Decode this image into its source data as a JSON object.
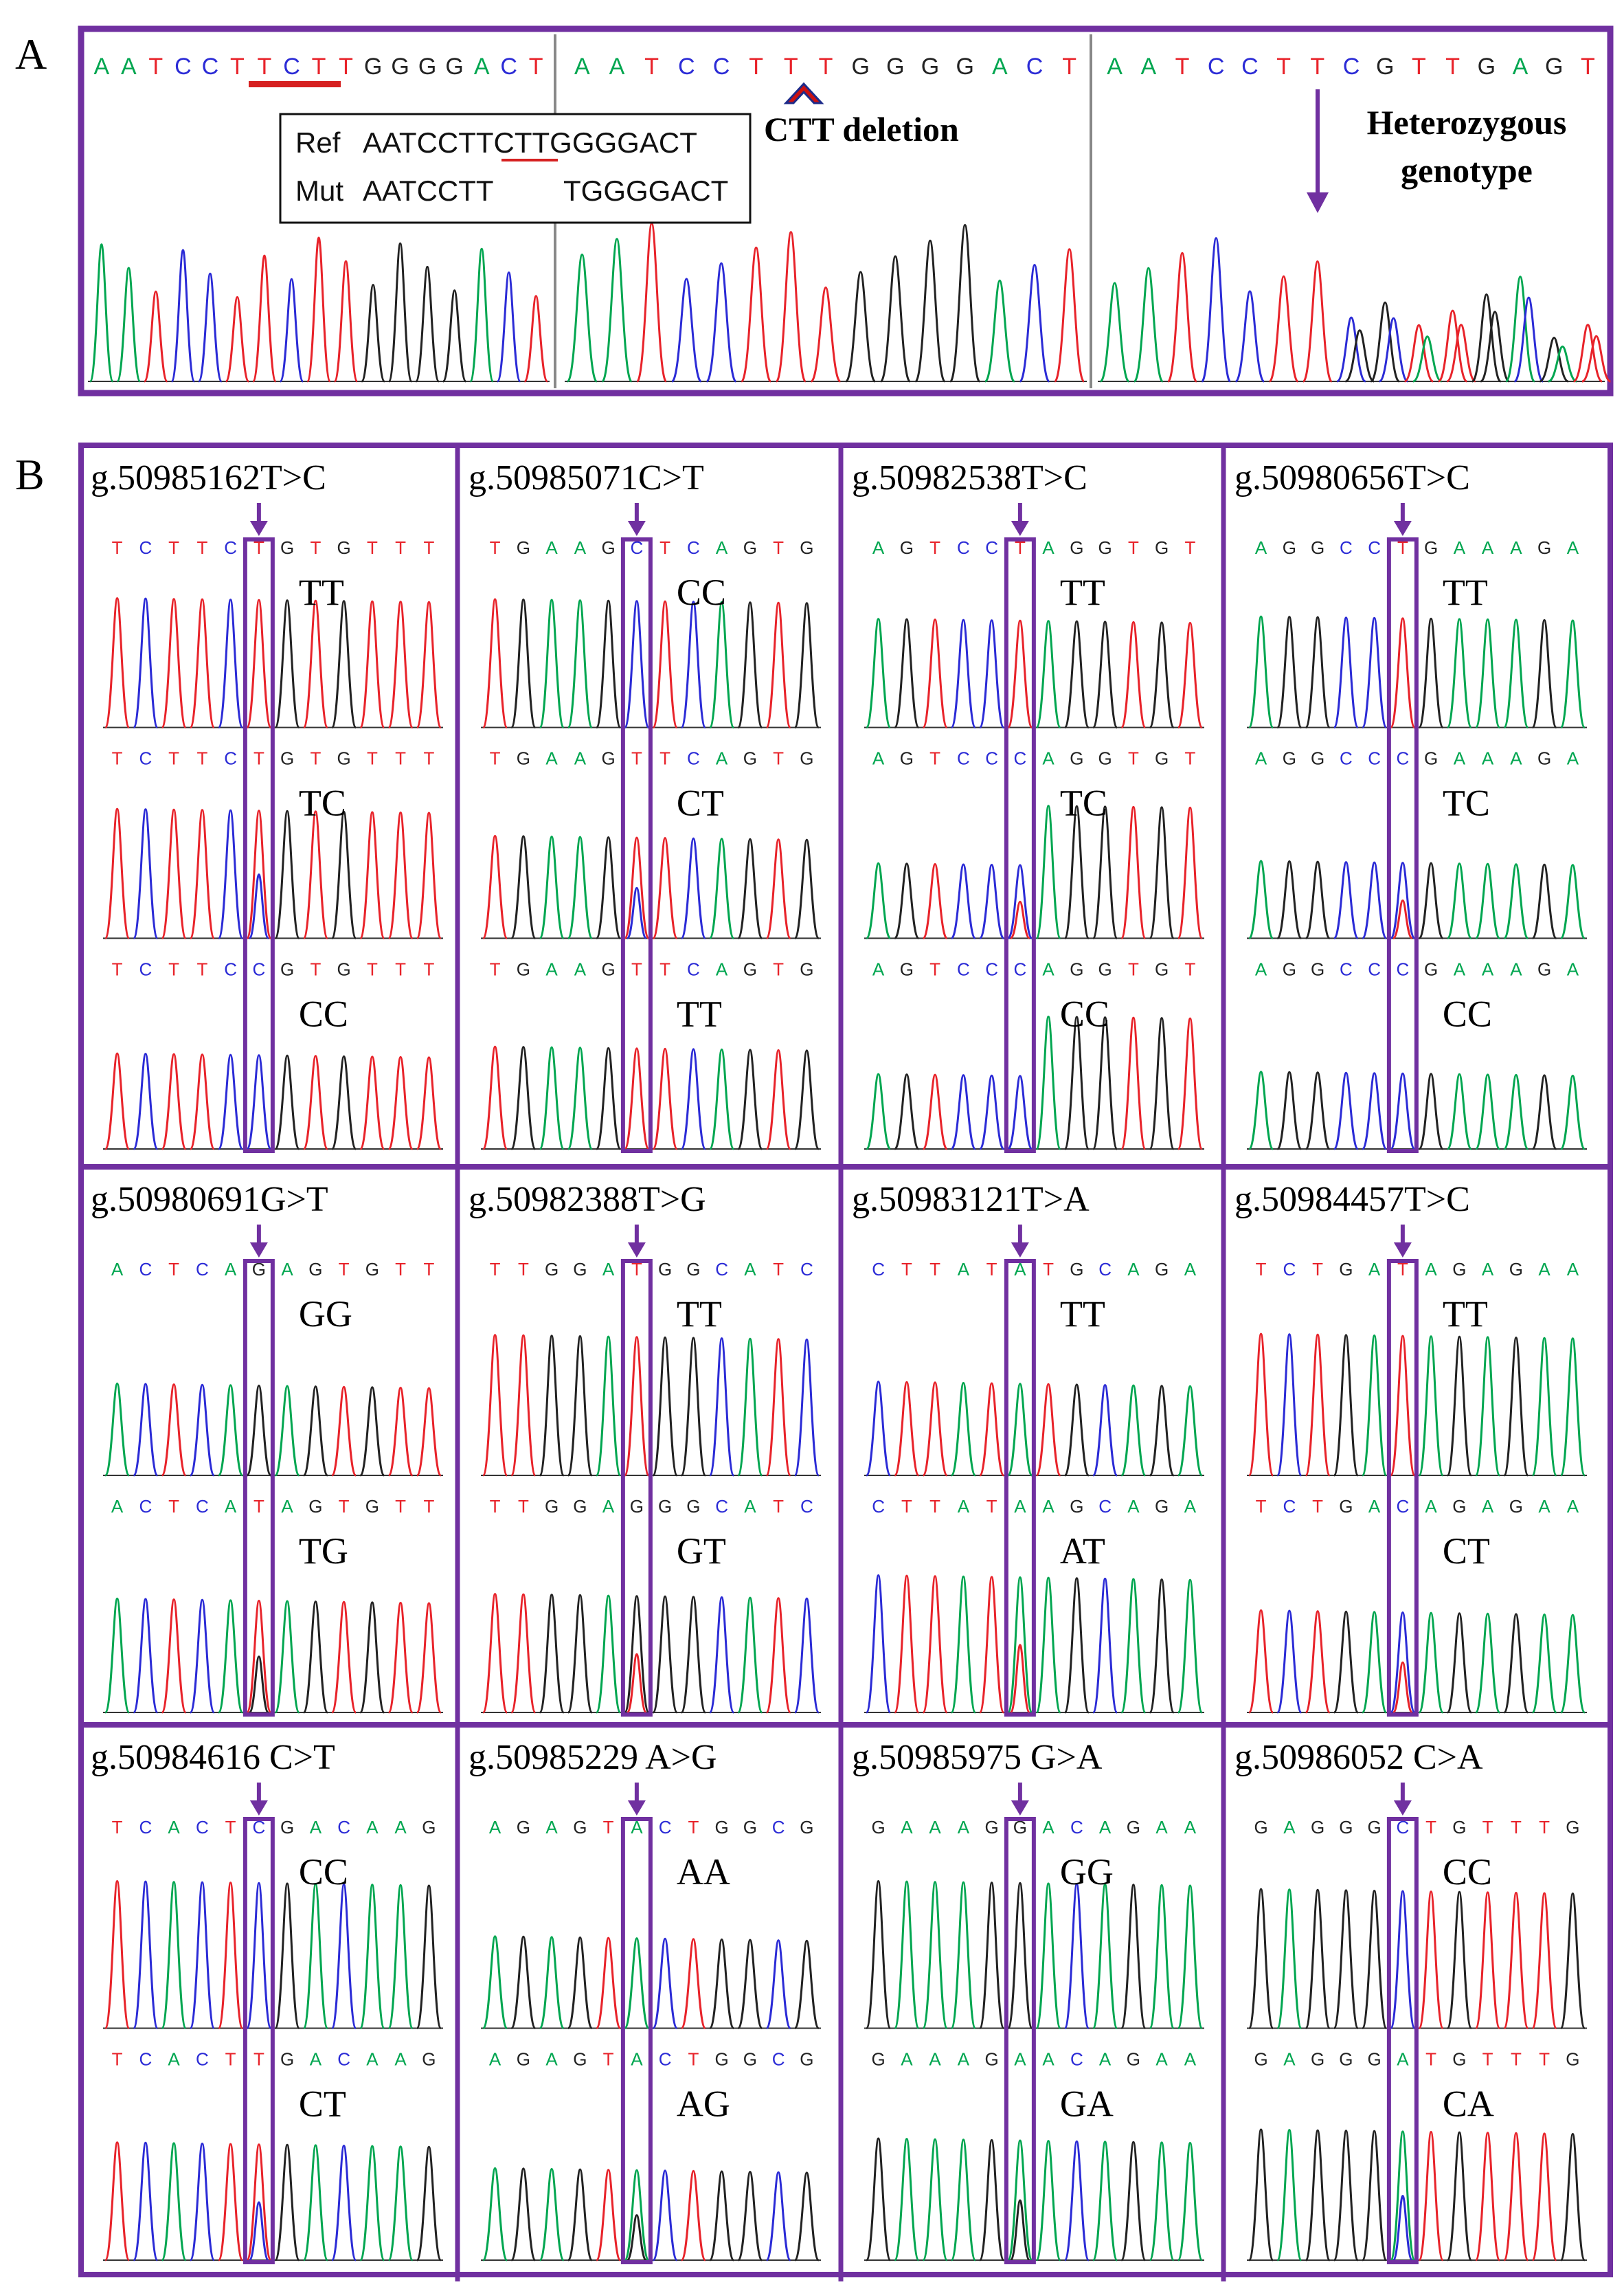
{
  "colors": {
    "frame": "#7030a0",
    "A": "#00a650",
    "C": "#2b2bd6",
    "G": "#222222",
    "T": "#e8232a",
    "ref_mark": "#d62020",
    "del_mark": "#cc1111"
  },
  "panel_a": {
    "label": "A",
    "panel1": {
      "seq": "AATCCTTCTTGGGGACT",
      "ref_label": "Ref",
      "ref_seq": "AATCCTTCTTGGGGACT",
      "mut_label": "Mut",
      "mut_seq_left": "AATCCTT",
      "mut_seq_right": "TGGGGACT"
    },
    "panel2": {
      "seq": "AATCCTTTGGGGACT",
      "annotation": "CTT deletion"
    },
    "panel3": {
      "seq": "AATCCTTCGTTGAGT",
      "annotation_line1": "Heterozygous",
      "annotation_line2": "genotype"
    }
  },
  "panel_b": {
    "label": "B",
    "variants": [
      {
        "name": "g.50985162T>C",
        "traces": [
          {
            "seq": "TCTTCTGTGTTT",
            "genotype": "TT"
          },
          {
            "seq": "TCTTCTGTGTTT",
            "genotype": "TC"
          },
          {
            "seq": "TCTTCCGTGTTT",
            "genotype": "CC"
          }
        ]
      },
      {
        "name": "g.50985071C>T",
        "traces": [
          {
            "seq": "TGAAGCTCAGTG",
            "genotype": "CC"
          },
          {
            "seq": "TGAAGTTCAGTG",
            "genotype": "CT"
          },
          {
            "seq": "TGAAGTTCAGTG",
            "genotype": "TT"
          }
        ]
      },
      {
        "name": "g.50982538T>C",
        "traces": [
          {
            "seq": "AGTCCTAGGTGT",
            "genotype": "TT"
          },
          {
            "seq": "AGTCCCAGGTGT",
            "genotype": "TC"
          },
          {
            "seq": "AGTCCCAGGTGT",
            "genotype": "CC"
          }
        ]
      },
      {
        "name": "g.50980656T>C",
        "traces": [
          {
            "seq": "AGGCCTGAAAGA",
            "genotype": "TT"
          },
          {
            "seq": "AGGCCCGAAAGA",
            "genotype": "TC"
          },
          {
            "seq": "AGGCCCGAAAGA",
            "genotype": "CC"
          }
        ]
      },
      {
        "name": "g.50980691G>T",
        "traces": [
          {
            "seq": "ACTCAGAGTGTT",
            "genotype": "GG"
          },
          {
            "seq": "ACTCATAGTGTT",
            "genotype": "TG"
          }
        ]
      },
      {
        "name": "g.50982388T>G",
        "traces": [
          {
            "seq": "TTGGATGGCATC",
            "genotype": "TT"
          },
          {
            "seq": "TTGGAGGGCATC",
            "genotype": "GT"
          }
        ]
      },
      {
        "name": "g.50983121T>A",
        "traces": [
          {
            "seq": "CTTATATGCAGA",
            "genotype": "TT"
          },
          {
            "seq": "CTTATAAGCAGA",
            "genotype": "AT"
          }
        ]
      },
      {
        "name": "g.50984457T>C",
        "traces": [
          {
            "seq": "TCTGATAGAGAA",
            "genotype": "TT"
          },
          {
            "seq": "TCTGACAGAGAA",
            "genotype": "CT"
          }
        ]
      },
      {
        "name": "g.50984616 C>T",
        "traces": [
          {
            "seq": "TCACTCGACAAG",
            "genotype": "CC"
          },
          {
            "seq": "TCACTTGACAAG",
            "genotype": "CT"
          }
        ]
      },
      {
        "name": "g.50985229 A>G",
        "traces": [
          {
            "seq": "AGAGTACTGGCG",
            "genotype": "AA"
          },
          {
            "seq": "AGAGTACTGGCG",
            "genotype": "AG"
          }
        ]
      },
      {
        "name": "g.50985975 G>A",
        "traces": [
          {
            "seq": "GAAAGGACAGAA",
            "genotype": "GG"
          },
          {
            "seq": "GAAAGAACAGAA",
            "genotype": "GA"
          }
        ]
      },
      {
        "name": "g.50986052 C>A",
        "traces": [
          {
            "seq": "GAGGGCTGTTTG",
            "genotype": "CC"
          },
          {
            "seq": "GAGGGATGTTTG",
            "genotype": "CA"
          }
        ]
      }
    ]
  }
}
